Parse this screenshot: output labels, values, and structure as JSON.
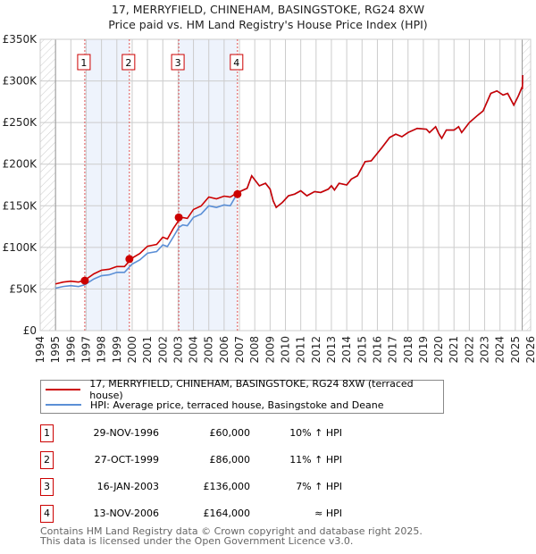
{
  "title": "17, MERRYFIELD, CHINEHAM, BASINGSTOKE, RG24 8XW",
  "subtitle": "Price paid vs. HM Land Registry's House Price Index (HPI)",
  "colors": {
    "property": "#cc0000",
    "hpi": "#5b8fd6",
    "band": "#eef3fc"
  },
  "chart_data": {
    "type": "line",
    "xlim": [
      1994,
      2026
    ],
    "ylim": [
      0,
      350000
    ],
    "yticks": [
      {
        "v": 0,
        "label": "£0"
      },
      {
        "v": 50000,
        "label": "£50K"
      },
      {
        "v": 100000,
        "label": "£100K"
      },
      {
        "v": 150000,
        "label": "£150K"
      },
      {
        "v": 200000,
        "label": "£200K"
      },
      {
        "v": 250000,
        "label": "£250K"
      },
      {
        "v": 300000,
        "label": "£300K"
      },
      {
        "v": 350000,
        "label": "£350K"
      }
    ],
    "xticks": [
      "1994",
      "1995",
      "1996",
      "1997",
      "1998",
      "1999",
      "2000",
      "2001",
      "2002",
      "2003",
      "2004",
      "2005",
      "2006",
      "2007",
      "2008",
      "2009",
      "2010",
      "2011",
      "2012",
      "2013",
      "2014",
      "2015",
      "2016",
      "2017",
      "2018",
      "2019",
      "2020",
      "2021",
      "2022",
      "2023",
      "2024",
      "2025",
      "2026"
    ],
    "data_range": [
      1995,
      2025.45
    ],
    "series": [
      {
        "name": "HPI",
        "points": [
          [
            1995,
            51000
          ],
          [
            1995.5,
            53000
          ],
          [
            1996,
            54000
          ],
          [
            1996.5,
            53000
          ],
          [
            1996.9,
            55000
          ],
          [
            1997.5,
            62000
          ],
          [
            1998,
            66000
          ],
          [
            1998.5,
            67000
          ],
          [
            1999,
            70000
          ],
          [
            1999.5,
            70000
          ],
          [
            2000,
            80000
          ],
          [
            2000.5,
            85000
          ],
          [
            2001,
            93000
          ],
          [
            2001.6,
            95000
          ],
          [
            2002,
            103000
          ],
          [
            2002.3,
            101000
          ],
          [
            2002.7,
            113000
          ],
          [
            2003.05,
            124000
          ],
          [
            2003.3,
            127000
          ],
          [
            2003.6,
            126000
          ],
          [
            2004,
            136000
          ],
          [
            2004.5,
            140000
          ],
          [
            2005,
            150000
          ],
          [
            2005.5,
            148000
          ],
          [
            2006,
            151000
          ],
          [
            2006.4,
            150000
          ],
          [
            2006.9,
            166000
          ],
          [
            2007.5,
            171000
          ],
          [
            2007.8,
            186000
          ],
          [
            2008.3,
            174000
          ],
          [
            2008.7,
            177000
          ],
          [
            2009.0,
            170000
          ],
          [
            2009.2,
            156000
          ],
          [
            2009.4,
            148000
          ],
          [
            2009.8,
            154000
          ],
          [
            2010.2,
            162000
          ],
          [
            2010.6,
            164000
          ],
          [
            2011.0,
            168000
          ],
          [
            2011.4,
            162000
          ],
          [
            2011.9,
            167000
          ],
          [
            2012.3,
            166000
          ],
          [
            2012.8,
            170000
          ],
          [
            2013.0,
            174000
          ],
          [
            2013.2,
            169000
          ],
          [
            2013.5,
            177000
          ],
          [
            2014,
            175000
          ],
          [
            2014.3,
            182000
          ],
          [
            2014.7,
            186000
          ],
          [
            2015.2,
            203000
          ],
          [
            2015.6,
            204000
          ],
          [
            2016.3,
            220000
          ],
          [
            2016.8,
            232000
          ],
          [
            2017.2,
            236000
          ],
          [
            2017.6,
            233000
          ],
          [
            2018,
            238000
          ],
          [
            2018.6,
            243000
          ],
          [
            2019.2,
            242000
          ],
          [
            2019.4,
            238000
          ],
          [
            2019.8,
            245000
          ],
          [
            2020,
            237000
          ],
          [
            2020.2,
            231000
          ],
          [
            2020.5,
            241000
          ],
          [
            2021,
            241000
          ],
          [
            2021.3,
            245000
          ],
          [
            2021.5,
            238000
          ],
          [
            2022,
            250000
          ],
          [
            2022.5,
            258000
          ],
          [
            2022.9,
            264000
          ],
          [
            2023.4,
            285000
          ],
          [
            2023.8,
            288000
          ],
          [
            2024.2,
            283000
          ],
          [
            2024.5,
            285000
          ],
          [
            2024.9,
            271000
          ],
          [
            2025.2,
            282000
          ],
          [
            2025.5,
            293000
          ],
          [
            2025.8,
            290000
          ],
          [
            2026.1,
            301000
          ],
          [
            2026.3,
            307000
          ]
        ]
      },
      {
        "name": "Property",
        "points": []
      }
    ],
    "sales": [
      {
        "n": "1",
        "x": 1996.91,
        "y": 60000
      },
      {
        "n": "2",
        "x": 1999.82,
        "y": 86000
      },
      {
        "n": "3",
        "x": 2003.04,
        "y": 136000
      },
      {
        "n": "4",
        "x": 2006.87,
        "y": 164000
      }
    ]
  },
  "legend": {
    "property": "17, MERRYFIELD, CHINEHAM, BASINGSTOKE, RG24 8XW (terraced house)",
    "hpi": "HPI: Average price, terraced house, Basingstoke and Deane"
  },
  "table": [
    {
      "n": "1",
      "date": "29-NOV-1996",
      "price": "£60,000",
      "hpi": "10% ↑ HPI"
    },
    {
      "n": "2",
      "date": "27-OCT-1999",
      "price": "£86,000",
      "hpi": "11% ↑ HPI"
    },
    {
      "n": "3",
      "date": "16-JAN-2003",
      "price": "£136,000",
      "hpi": "7% ↑ HPI"
    },
    {
      "n": "4",
      "date": "13-NOV-2006",
      "price": "£164,000",
      "hpi": "≈ HPI"
    }
  ],
  "footer": [
    "Contains HM Land Registry data © Crown copyright and database right 2025.",
    "This data is licensed under the Open Government Licence v3.0."
  ]
}
